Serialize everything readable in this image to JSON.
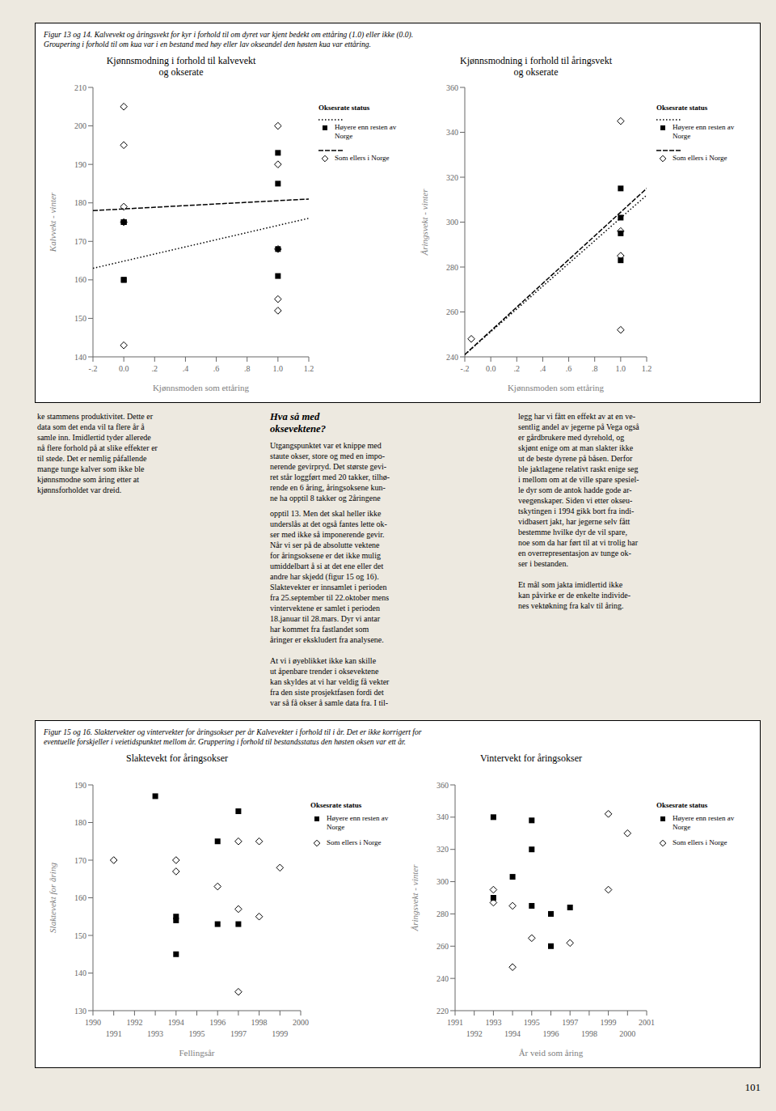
{
  "chart_data": [
    {
      "type": "scatter",
      "title": "Kjønnsmodning i forhold til kalvevekt\nog okserate",
      "x_label": "Kjønnsmoden som ettåring",
      "y_label": "Kalvvekt - vinter",
      "xlim": [
        -0.2,
        1.2
      ],
      "ylim": [
        140,
        210
      ],
      "xticks": [
        {
          "value": -0.2,
          "label": "-.2"
        },
        {
          "value": 0.0,
          "label": "0.0"
        },
        {
          "value": 0.2,
          "label": ".2"
        },
        {
          "value": 0.4,
          "label": ".4"
        },
        {
          "value": 0.6,
          "label": ".6"
        },
        {
          "value": 0.8,
          "label": ".8"
        },
        {
          "value": 1.0,
          "label": "1.0"
        },
        1.2
      ],
      "yticks": [
        140,
        150,
        160,
        170,
        180,
        190,
        200,
        210
      ],
      "grid": false,
      "legend": "right",
      "legend_title": "Oksesrate status",
      "annotations": [
        "Figur 13 og 14. Kalvevekt og åringsvekt for kyr i forhold til om dyret var kjent bedekt om ettåring (1.0) eller ikke (0.0).\nGroupering i forhold til om kua var i en bestand med høy eller lav okseandel den høsten kua var ettåring."
      ],
      "series": [
        {
          "name": "Som ellers i Norge",
          "type": "line",
          "line_style": "dashed",
          "color": "#000000",
          "x": [
            -0.2,
            1.2
          ],
          "values": [
            178,
            181
          ]
        },
        {
          "name": "Høyere enn resten av\nNorge",
          "type": "line",
          "line_style": "dotted",
          "color": "#000000",
          "x": [
            -0.2,
            1.2
          ],
          "values": [
            163,
            176
          ]
        },
        {
          "name": "Høyere enn resten av\nNorge",
          "type": "scatter",
          "marker": "square",
          "color": "#000000",
          "x": [
            0.0,
            0.0,
            0.0,
            0.0,
            1.0,
            1.0,
            1.0,
            1.0
          ],
          "values": [
            175,
            175,
            160,
            160,
            193,
            185,
            168,
            161
          ]
        },
        {
          "name": "Som ellers i Norge",
          "type": "scatter",
          "marker": "open_diamond",
          "color": "#000000",
          "x": [
            0.0,
            0.0,
            0.0,
            0.0,
            0.0,
            1.0,
            1.0,
            1.0,
            1.0,
            1.0
          ],
          "values": [
            205,
            195,
            179,
            175,
            143,
            200,
            190,
            168,
            155,
            152
          ]
        }
      ]
    },
    {
      "type": "scatter",
      "title": "Kjønnsmodning i forhold til åringsvekt\nog okserate",
      "x_label": "Kjønnsmoden som ettåring",
      "y_label": "Åringsvekt - vinter",
      "xlim": [
        -0.2,
        1.2
      ],
      "ylim": [
        240,
        360
      ],
      "xticks": [
        {
          "value": -0.2,
          "label": "-.2"
        },
        {
          "value": 0.0,
          "label": "0.0"
        },
        {
          "value": 0.2,
          "label": ".2"
        },
        {
          "value": 0.4,
          "label": ".4"
        },
        {
          "value": 0.6,
          "label": ".6"
        },
        {
          "value": 0.8,
          "label": ".8"
        },
        {
          "value": 1.0,
          "label": "1.0"
        },
        1.2
      ],
      "yticks": [
        240,
        260,
        280,
        300,
        320,
        340,
        360
      ],
      "grid": false,
      "legend": "right",
      "legend_title": "Oksesrate status",
      "series": [
        {
          "name": "Høyere enn resten av\nNorge",
          "type": "line",
          "line_style": "dotted",
          "color": "#000000",
          "x": [
            -0.2,
            1.2
          ],
          "values": [
            241,
            312
          ]
        },
        {
          "name": "Som ellers i Norge",
          "type": "line",
          "line_style": "dashed",
          "color": "#000000",
          "x": [
            -0.2,
            1.2
          ],
          "values": [
            241,
            315
          ]
        },
        {
          "name": "Høyere enn resten av\nNorge",
          "type": "scatter",
          "marker": "square",
          "color": "#000000",
          "x": [
            1.0,
            1.0,
            1.0,
            1.0
          ],
          "values": [
            315,
            302,
            295,
            283
          ]
        },
        {
          "name": "Som ellers i Norge",
          "type": "scatter",
          "marker": "open_diamond",
          "color": "#000000",
          "x": [
            -0.15,
            1.0,
            1.0,
            1.0,
            1.0
          ],
          "values": [
            248,
            345,
            296,
            285,
            252
          ]
        }
      ]
    },
    {
      "type": "scatter",
      "title": "Slaktevekt for åringsokser",
      "x_label": "Fellingsår",
      "y_label": "Slaktevekt for åring",
      "xlim": [
        1990,
        2000
      ],
      "ylim": [
        130,
        190
      ],
      "xticks": [
        1990,
        1991,
        1992,
        1993,
        1994,
        1995,
        1996,
        1997,
        1998,
        1999,
        2000
      ],
      "yticks": [
        130,
        140,
        150,
        160,
        170,
        180,
        190
      ],
      "grid": false,
      "legend": "right",
      "legend_title": "Oksesrate status",
      "annotations": [
        "Figur 15 og 16. Slaktervekter og vintervekter for åringsokser per år Kalvevekter i forhold til i år. Det er ikke korrigert for\neventuelle forskjeller i veietidspunktet mellom år. Gruppering i forhold til bestandsstatus den høsten oksen var ett år."
      ],
      "series": [
        {
          "name": "Høyere enn resten av\nNorge",
          "type": "scatter",
          "marker": "square",
          "color": "#000000",
          "x": [
            1993,
            1994,
            1994,
            1994,
            1996,
            1996,
            1997,
            1997
          ],
          "values": [
            187,
            155,
            154,
            145,
            175,
            153,
            183,
            153
          ]
        },
        {
          "name": "Som ellers i Norge",
          "type": "scatter",
          "marker": "open_diamond",
          "color": "#000000",
          "x": [
            1991,
            1994,
            1994,
            1996,
            1997,
            1997,
            1997,
            1998,
            1998,
            1999
          ],
          "values": [
            170,
            170,
            167,
            163,
            175,
            157,
            135,
            175,
            155,
            168
          ]
        }
      ]
    },
    {
      "type": "scatter",
      "title": "Vintervekt for åringsokser",
      "x_label": "År veid som åring",
      "y_label": "Åringsvekt - vinter",
      "xlim": [
        1991,
        2001
      ],
      "ylim": [
        220,
        360
      ],
      "xticks": [
        1991,
        1992,
        1993,
        1994,
        1995,
        1996,
        1997,
        1998,
        1999,
        2000,
        2001
      ],
      "yticks": [
        220,
        240,
        260,
        280,
        300,
        320,
        340,
        360
      ],
      "grid": false,
      "legend": "right",
      "legend_title": "Oksesrate status",
      "series": [
        {
          "name": "Høyere enn resten av\nNorge",
          "type": "scatter",
          "marker": "square",
          "color": "#000000",
          "x": [
            1993,
            1993,
            1994,
            1995,
            1995,
            1995,
            1996,
            1996,
            1997
          ],
          "values": [
            340,
            290,
            303,
            338,
            320,
            285,
            280,
            260,
            284
          ]
        },
        {
          "name": "Som ellers i Norge",
          "type": "scatter",
          "marker": "open_diamond",
          "color": "#000000",
          "x": [
            1993,
            1993,
            1994,
            1994,
            1995,
            1997,
            1999,
            1999,
            2000
          ],
          "values": [
            295,
            287,
            285,
            247,
            265,
            262,
            342,
            295,
            330
          ]
        }
      ]
    }
  ],
  "annotations": [
    "ke stammens produktivitet. Dette er\ndata som det enda vil ta flere år å\nsamle inn. Imidlertid tyder allerede\nnå flere forhold på at slike effekter er\ntil stede. Det er nemlig påfallende\nmange tunge kalver som ikke ble\nkjønnsmodne som åring etter at\nkjønnsforholdet var dreid.",
    "Hva så med\noksevektene?",
    "Utgangspunktet var et knippe med\nstaute okser, store og med en impo-\nnerende gevirpryd. Det største gevi-\nret står loggført med 20 takker, tilhø-\nrende en 6 åring, åringsoksene kun-\nne ha opptil 8 takker og 2åringene",
    "opptil 13. Men det skal heller ikke\nunderslås at det også fantes lette ok-\nser med ikke så imponerende gevir.\nNår vi ser på de absolutte vektene\nfor åringsoksene er det ikke mulig\numiddelbart å si at det ene eller det\nandre har skjedd (figur 15 og 16).\nSlaktevekter er innsamlet i perioden\nfra 25.september til 22.oktober mens\nvintervektene er samlet i perioden\n18.januar til 28.mars. Dyr vi antar\nhar kommet fra fastlandet som\nåringer er ekskludert fra analysene.\n\nAt vi i øyeblikket ikke kan skille\nut åpenbare trender i oksevektene\nkan skyldes at vi har veldig få vekter\nfra den siste prosjektfasen fordi det\nvar så få okser å samle data fra. I til-",
    "legg har vi fått en effekt av at en ve-\nsentlig andel av jegerne på Vega også\ner gårdbrukere med dyrehold, og\nskjønt enige om at man slakter ikke\nut de beste dyrene på båsen. Derfor\nble jaktlagene relativt raskt enige seg\ni mellom om at de ville spare spesiel-\nle dyr som de antok hadde gode ar-\nveegenskaper. Siden vi etter okseu-\ntskytingen i 1994 gikk bort fra indi-\nvidbasert jakt, har jegerne selv fått\nbestemme hvilke dyr de vil spare,\nnoe som da har ført til at vi trolig har\nen overrepresentasjon av tunge ok-\nser i bestanden.\n\nEt mål som jakta imidlertid ikke\nkan påvirke er de enkelte individe-\nnes vektøkning fra kalv til åring.",
    "101"
  ]
}
